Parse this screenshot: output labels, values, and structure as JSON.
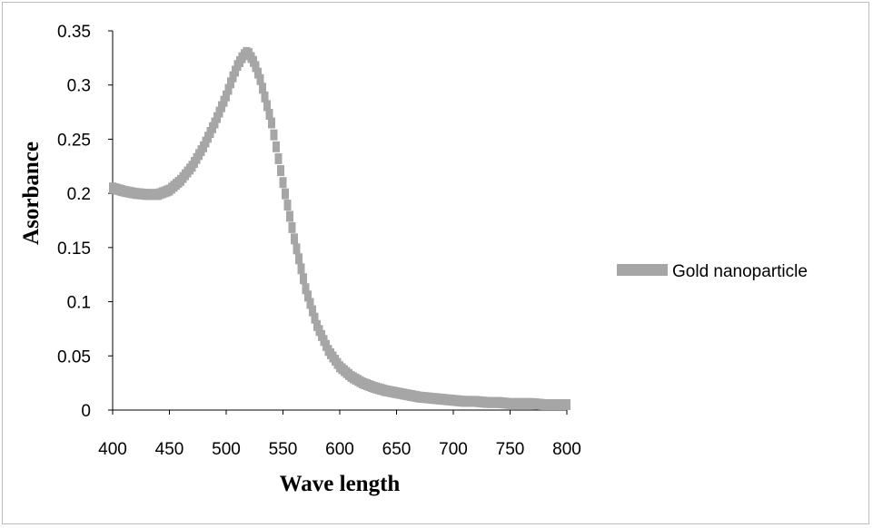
{
  "chart_data": {
    "type": "scatter",
    "title": "",
    "xlabel": "Wave length",
    "ylabel": "Asorbance",
    "xlim": [
      400,
      800
    ],
    "ylim": [
      0,
      0.35
    ],
    "xticks": [
      "400",
      "450",
      "500",
      "550",
      "600",
      "650",
      "700",
      "750",
      "800"
    ],
    "yticks": [
      "0",
      "0.05",
      "0.1",
      "0.15",
      "0.2",
      "0.25",
      "0.3",
      "0.35"
    ],
    "grid": false,
    "legend_position": "right",
    "series": [
      {
        "name": "Gold nanoparticle",
        "color": "#a6a6a6",
        "marker": "dash",
        "x": [
          400,
          410,
          420,
          430,
          440,
          450,
          460,
          470,
          480,
          490,
          500,
          505,
          510,
          515,
          518,
          520,
          525,
          530,
          540,
          550,
          560,
          570,
          580,
          590,
          600,
          610,
          620,
          630,
          640,
          650,
          660,
          670,
          680,
          690,
          700,
          710,
          720,
          730,
          740,
          750,
          760,
          770,
          780,
          790,
          800
        ],
        "y": [
          0.205,
          0.202,
          0.2,
          0.199,
          0.199,
          0.203,
          0.212,
          0.225,
          0.243,
          0.265,
          0.29,
          0.305,
          0.318,
          0.327,
          0.33,
          0.329,
          0.32,
          0.305,
          0.265,
          0.21,
          0.158,
          0.112,
          0.078,
          0.055,
          0.04,
          0.031,
          0.025,
          0.021,
          0.018,
          0.016,
          0.014,
          0.012,
          0.011,
          0.01,
          0.009,
          0.008,
          0.008,
          0.007,
          0.007,
          0.006,
          0.006,
          0.006,
          0.005,
          0.005,
          0.005
        ]
      }
    ]
  }
}
